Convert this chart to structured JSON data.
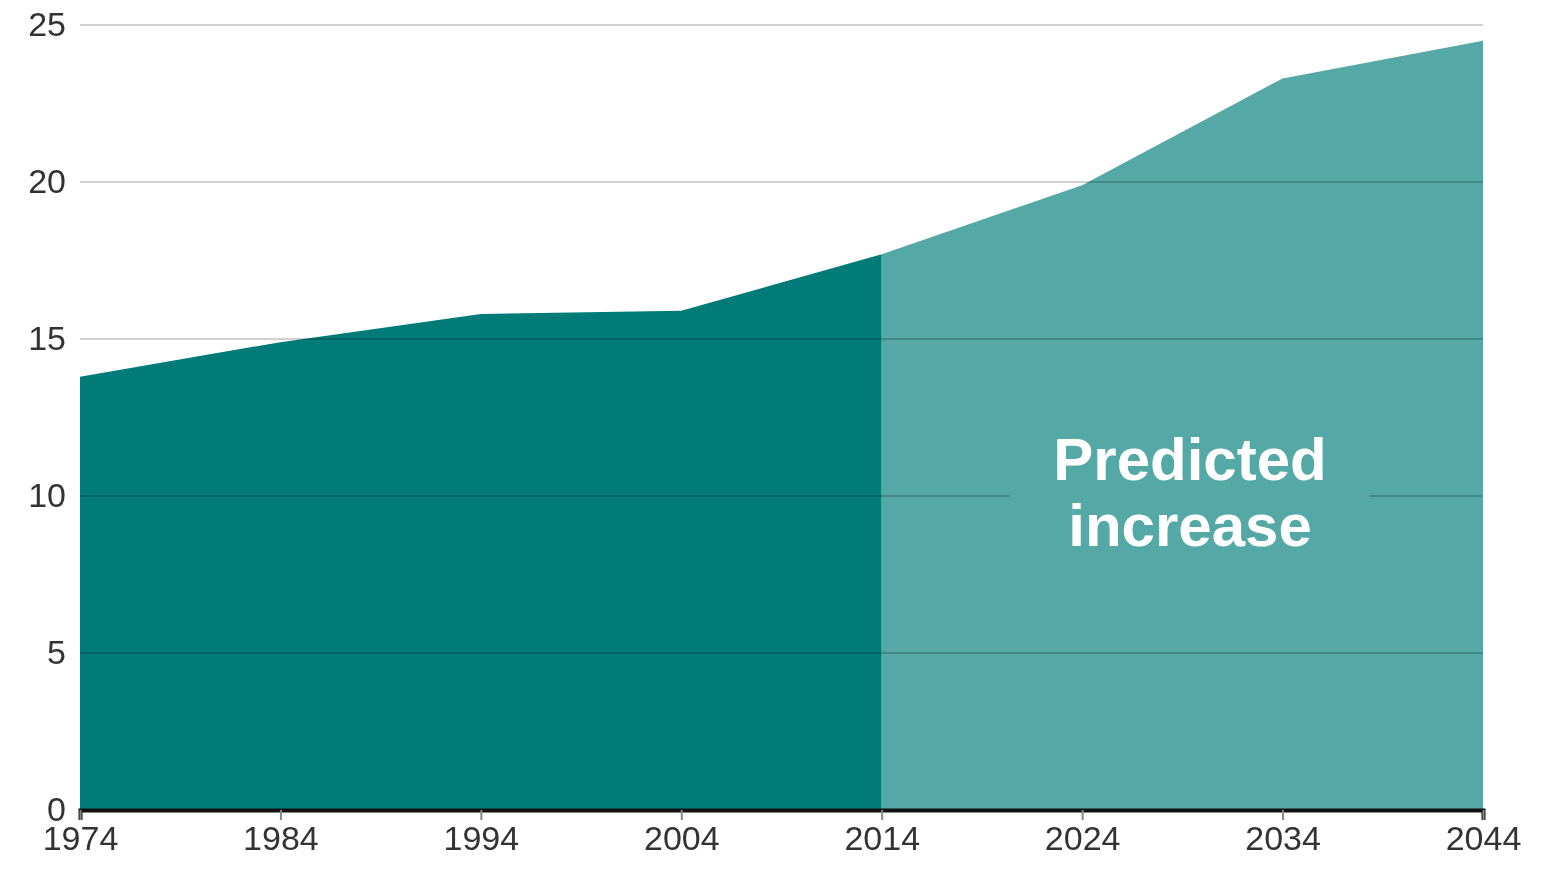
{
  "chart_data": {
    "type": "area",
    "xlim": [
      1974,
      2044
    ],
    "xticks": [
      1974,
      1984,
      1994,
      2004,
      2014,
      2024,
      2034,
      2044
    ],
    "ylim": [
      0,
      25
    ],
    "yticks": [
      0,
      5,
      10,
      15,
      20,
      25
    ],
    "grid": "y",
    "series": [
      {
        "color": "#007b78",
        "x": [
          1974,
          1984,
          1994,
          2004,
          2014
        ],
        "values": [
          13.8,
          14.9,
          15.8,
          15.9,
          17.7
        ]
      },
      {
        "color": "#54a8a6",
        "x": [
          2014,
          2024,
          2034,
          2044
        ],
        "values": [
          17.7,
          19.9,
          23.3,
          24.5
        ]
      }
    ],
    "annotations": [
      "Predicted increase"
    ]
  }
}
